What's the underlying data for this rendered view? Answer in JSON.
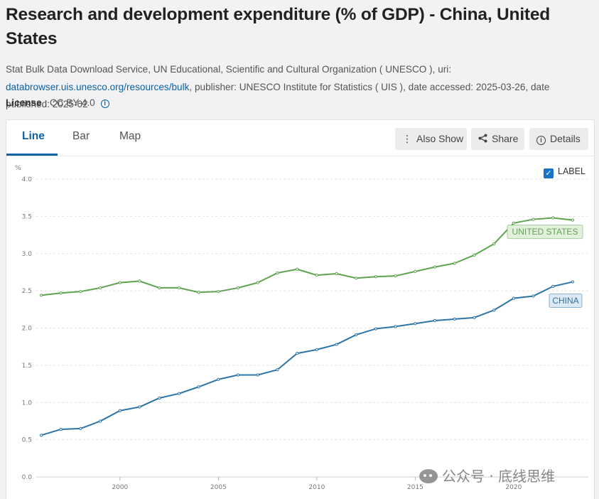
{
  "page": {
    "title": "Research and development expenditure (% of GDP) - China, United States",
    "source_prefix": "Stat Bulk Data Download Service, UN Educational, Scientific and Cultural Organization ( UNESCO ), uri: ",
    "source_link": "databrowser.uis.unesco.org/resources/bulk",
    "source_suffix": ", publisher: UNESCO Institute for Statistics ( UIS ), date accessed: 2025-03-26, date published: 2025-02",
    "license_label": "License",
    "license_value": " : CC BY-4.0",
    "info_icon": "i"
  },
  "tabs": [
    {
      "label": "Line",
      "active": true
    },
    {
      "label": "Bar",
      "active": false
    },
    {
      "label": "Map",
      "active": false
    }
  ],
  "toolbar": {
    "also_show": "Also Show",
    "share": "Share",
    "details": "Details"
  },
  "label_toggle": {
    "text": "LABEL",
    "checked": true
  },
  "watermark": "公众号 · 底线思维",
  "colors": {
    "china": "#2d74a8",
    "united_states": "#5ea450",
    "accent": "#0b62a4"
  },
  "chart_data": {
    "type": "line",
    "title": "",
    "xlabel": "",
    "ylabel": "%",
    "ylim": [
      0,
      4
    ],
    "yticks": [
      "0.0",
      "0.5",
      "1.0",
      "1.5",
      "2.0",
      "2.5",
      "3.0",
      "3.5",
      "4.0"
    ],
    "xticks": [
      "2000",
      "2005",
      "2010",
      "2015",
      "2020"
    ],
    "x": [
      1996,
      1997,
      1998,
      1999,
      2000,
      2001,
      2002,
      2003,
      2004,
      2005,
      2006,
      2007,
      2008,
      2009,
      2010,
      2011,
      2012,
      2013,
      2014,
      2015,
      2016,
      2017,
      2018,
      2019,
      2020,
      2021,
      2022,
      2023
    ],
    "series": [
      {
        "name": "UNITED STATES",
        "color": "#5ea450",
        "values": [
          2.44,
          2.47,
          2.49,
          2.54,
          2.61,
          2.63,
          2.54,
          2.54,
          2.48,
          2.49,
          2.54,
          2.61,
          2.74,
          2.79,
          2.71,
          2.73,
          2.67,
          2.69,
          2.7,
          2.76,
          2.82,
          2.87,
          2.98,
          3.13,
          3.41,
          3.46,
          3.48,
          3.45
        ]
      },
      {
        "name": "CHINA",
        "color": "#2d74a8",
        "values": [
          0.56,
          0.64,
          0.65,
          0.75,
          0.89,
          0.94,
          1.06,
          1.12,
          1.21,
          1.31,
          1.37,
          1.37,
          1.44,
          1.66,
          1.71,
          1.78,
          1.91,
          1.99,
          2.02,
          2.06,
          2.1,
          2.12,
          2.14,
          2.24,
          2.4,
          2.43,
          2.56,
          2.62
        ]
      }
    ],
    "grid": true,
    "legend": "inline-labels"
  }
}
